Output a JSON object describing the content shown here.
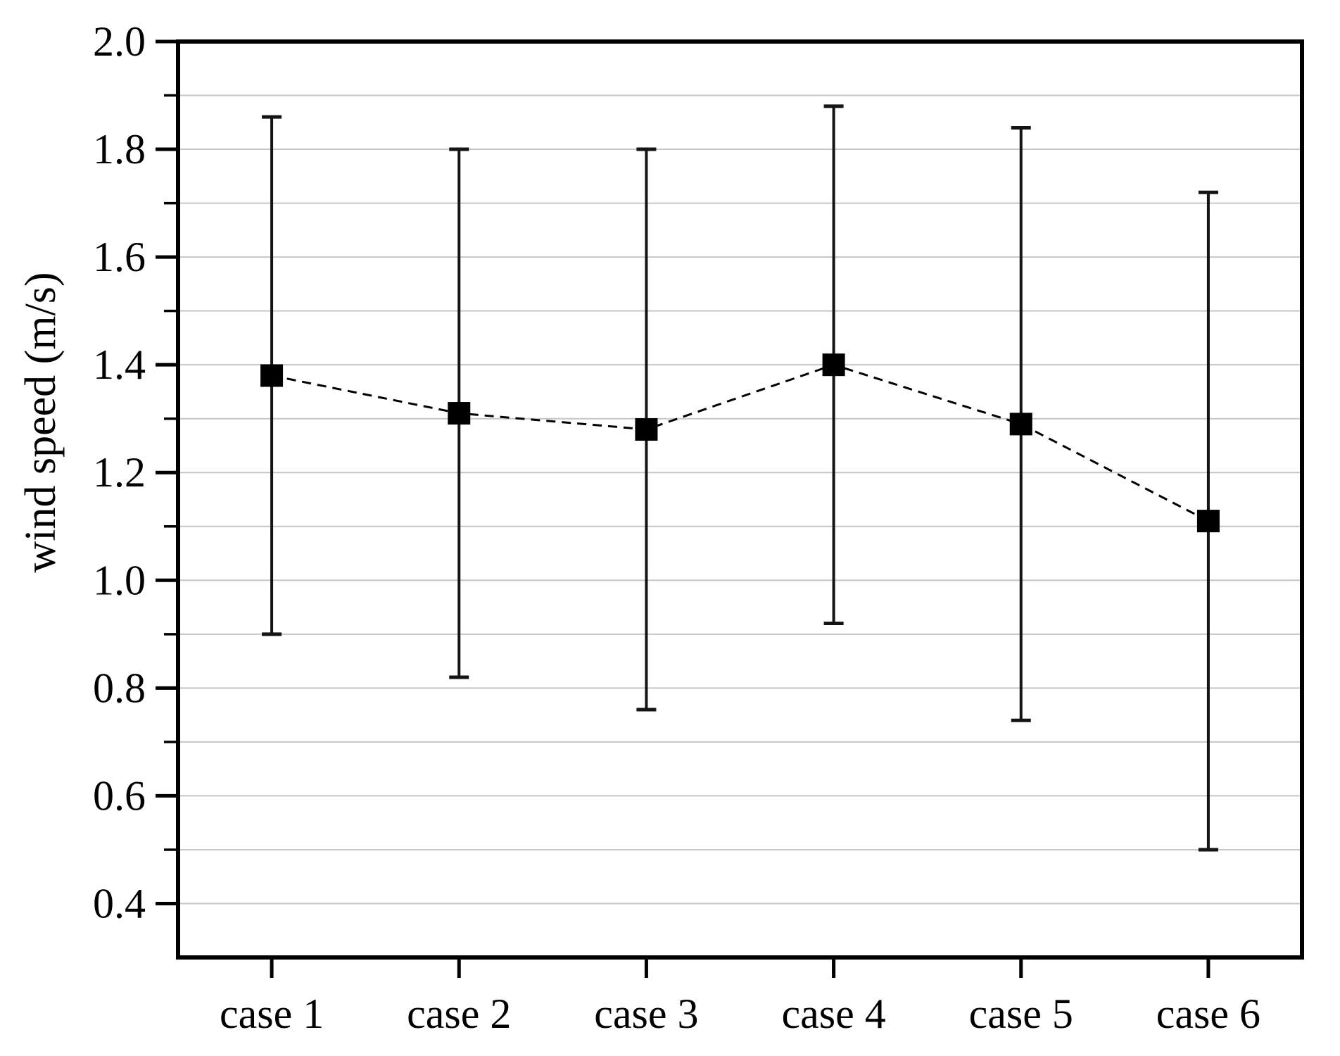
{
  "chart_data": {
    "type": "line",
    "title": "",
    "xlabel": "",
    "ylabel": "wind speed (m/s)",
    "categories": [
      "case 1",
      "case 2",
      "case 3",
      "case 4",
      "case 5",
      "case 6"
    ],
    "series": [
      {
        "name": "wind speed",
        "values": [
          1.38,
          1.31,
          1.28,
          1.4,
          1.29,
          1.11
        ],
        "error_upper": [
          1.86,
          1.8,
          1.8,
          1.88,
          1.84,
          1.72
        ],
        "error_lower": [
          0.9,
          0.82,
          0.76,
          0.92,
          0.74,
          0.5
        ],
        "marker": "square",
        "line_style": "dashed",
        "color": "#000000"
      }
    ],
    "ylim": [
      0.3,
      2.0
    ],
    "ytick_major": [
      2.0,
      1.8,
      1.6,
      1.4,
      1.2,
      1.0,
      0.8,
      0.6,
      0.4
    ],
    "ytick_labels": [
      "2.0",
      "1.8",
      "1.6",
      "1.4",
      "1.2",
      "1.0",
      "0.8",
      "0.6",
      "0.4"
    ],
    "ytick_minor_step": 0.1,
    "grid": "horizontal every 0.1",
    "grid_color": "#c6c6c6",
    "axis_color": "#000000",
    "legend": "none"
  }
}
